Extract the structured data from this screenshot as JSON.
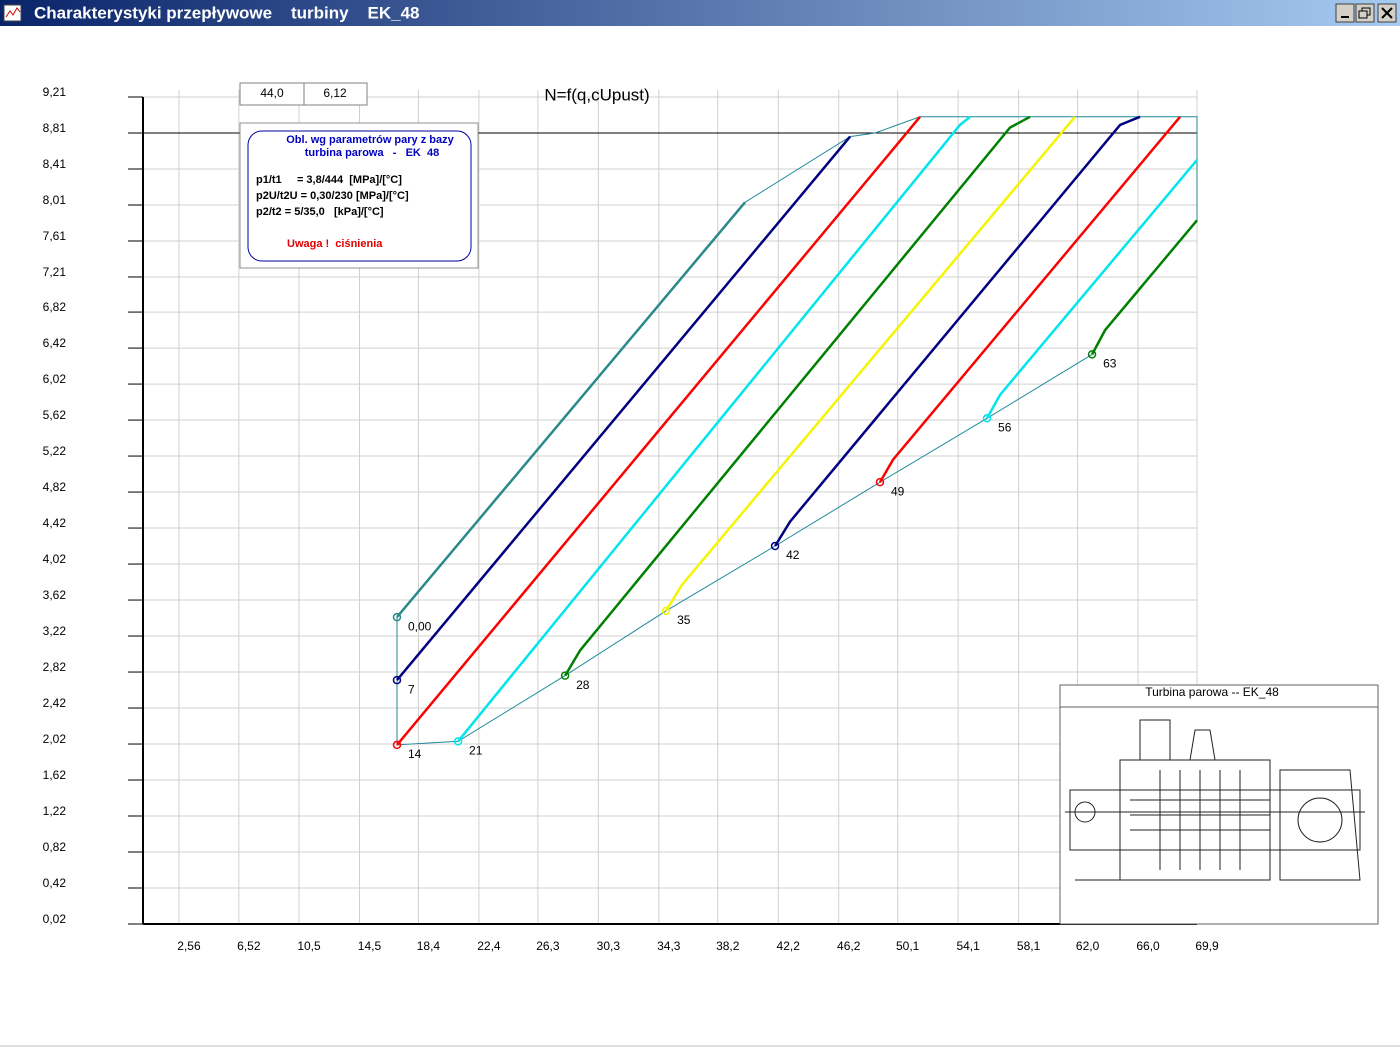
{
  "window": {
    "title": "Charakterystyki przepływowe    turbiny    EK_48"
  },
  "fields": [
    "44,0",
    "6,12"
  ],
  "info_box": {
    "heading": [
      "Obl. wg parametrów pary z bazy",
      "turbina parowa   -   EK  48"
    ],
    "lines": [
      "p1/t1     = 3,8/444  [MPa]/[°C]",
      "p2U/t2U = 0,30/230 [MPa]/[°C]",
      "p2/t2 = 5/35,0   [kPa]/[°C]"
    ],
    "warning": "Uwaga !  ciśnienia"
  },
  "inset": {
    "title": "Turbina parowa -- EK_48"
  },
  "chart_data": {
    "type": "line",
    "title": "N=f(q,cUpust)",
    "xlim": [
      0.18,
      69.9
    ],
    "ylim": [
      0.02,
      9.21
    ],
    "grid": true,
    "hline": 8.81,
    "xticks": [
      {
        "value": 2.56,
        "label": "2,56"
      },
      {
        "value": 6.52,
        "label": "6,52"
      },
      {
        "value": 10.5,
        "label": "10,5"
      },
      {
        "value": 14.5,
        "label": "14,5"
      },
      {
        "value": 18.4,
        "label": "18,4"
      },
      {
        "value": 22.4,
        "label": "22,4"
      },
      {
        "value": 26.3,
        "label": "26,3"
      },
      {
        "value": 30.3,
        "label": "30,3"
      },
      {
        "value": 34.3,
        "label": "34,3"
      },
      {
        "value": 38.2,
        "label": "38,2"
      },
      {
        "value": 42.2,
        "label": "42,2"
      },
      {
        "value": 46.2,
        "label": "46,2"
      },
      {
        "value": 50.1,
        "label": "50,1"
      },
      {
        "value": 54.1,
        "label": "54,1"
      },
      {
        "value": 58.1,
        "label": "58,1"
      },
      {
        "value": 62.0,
        "label": "62,0"
      },
      {
        "value": 66.0,
        "label": "66,0"
      },
      {
        "value": 69.9,
        "label": "69,9"
      }
    ],
    "yticks": [
      {
        "value": 0.02,
        "label": "0,02"
      },
      {
        "value": 0.42,
        "label": "0,42"
      },
      {
        "value": 0.82,
        "label": "0,82"
      },
      {
        "value": 1.22,
        "label": "1,22"
      },
      {
        "value": 1.62,
        "label": "1,62"
      },
      {
        "value": 2.02,
        "label": "2,02"
      },
      {
        "value": 2.42,
        "label": "2,42"
      },
      {
        "value": 2.82,
        "label": "2,82"
      },
      {
        "value": 3.22,
        "label": "3,22"
      },
      {
        "value": 3.62,
        "label": "3,62"
      },
      {
        "value": 4.02,
        "label": "4,02"
      },
      {
        "value": 4.42,
        "label": "4,42"
      },
      {
        "value": 4.82,
        "label": "4,82"
      },
      {
        "value": 5.22,
        "label": "5,22"
      },
      {
        "value": 5.62,
        "label": "5,62"
      },
      {
        "value": 6.02,
        "label": "6,02"
      },
      {
        "value": 6.42,
        "label": "6,42"
      },
      {
        "value": 6.82,
        "label": "6,82"
      },
      {
        "value": 7.21,
        "label": "7,21"
      },
      {
        "value": 7.61,
        "label": "7,61"
      },
      {
        "value": 8.01,
        "label": "8,01"
      },
      {
        "value": 8.41,
        "label": "8,41"
      },
      {
        "value": 8.81,
        "label": "8,81"
      },
      {
        "value": 9.21,
        "label": "9,21"
      }
    ],
    "series": [
      {
        "name": "0,00",
        "color": "#2a8a8a",
        "x": [
          16.98,
          40.0
        ],
        "values": [
          3.43,
          8.04
        ]
      },
      {
        "name": "7",
        "color": "#000080",
        "x": [
          16.98,
          46.95
        ],
        "values": [
          2.73,
          8.77
        ]
      },
      {
        "name": "14",
        "color": "#ff0000",
        "x": [
          16.98,
          50.59,
          51.58
        ],
        "values": [
          2.01,
          8.79,
          8.99
        ]
      },
      {
        "name": "21",
        "color": "#00e5ee",
        "x": [
          21.02,
          54.22,
          54.89
        ],
        "values": [
          2.05,
          8.9,
          8.99
        ]
      },
      {
        "name": "28",
        "color": "#008000",
        "x": [
          28.1,
          29.09,
          57.53,
          58.85
        ],
        "values": [
          2.78,
          3.06,
          8.87,
          8.99
        ]
      },
      {
        "name": "35",
        "color": "#f5f500",
        "x": [
          34.78,
          35.84,
          61.83
        ],
        "values": [
          3.5,
          3.79,
          8.99
        ]
      },
      {
        "name": "42",
        "color": "#000080",
        "x": [
          41.99,
          42.98,
          64.81,
          66.13
        ],
        "values": [
          4.22,
          4.49,
          8.9,
          8.99
        ]
      },
      {
        "name": "49",
        "color": "#ff0000",
        "x": [
          48.93,
          49.79,
          68.78
        ],
        "values": [
          4.93,
          5.18,
          8.99
        ]
      },
      {
        "name": "56",
        "color": "#00e5ee",
        "x": [
          56.01,
          56.87,
          69.9
        ],
        "values": [
          5.64,
          5.9,
          8.51
        ]
      },
      {
        "name": "63",
        "color": "#008000",
        "x": [
          62.96,
          63.82,
          69.9
        ],
        "values": [
          6.35,
          6.62,
          7.84
        ]
      }
    ],
    "envelope": {
      "color": "#1f8a9a",
      "x": [
        16.98,
        16.98,
        21.02,
        28.1,
        34.78,
        41.99,
        48.93,
        56.01,
        62.96,
        null,
        40.0,
        46.95,
        48.6,
        51.58,
        69.9,
        69.9
      ],
      "values": [
        3.43,
        2.01,
        2.05,
        2.78,
        3.5,
        4.22,
        4.93,
        5.64,
        6.35,
        null,
        8.04,
        8.77,
        8.81,
        8.99,
        8.99,
        7.84
      ]
    }
  }
}
